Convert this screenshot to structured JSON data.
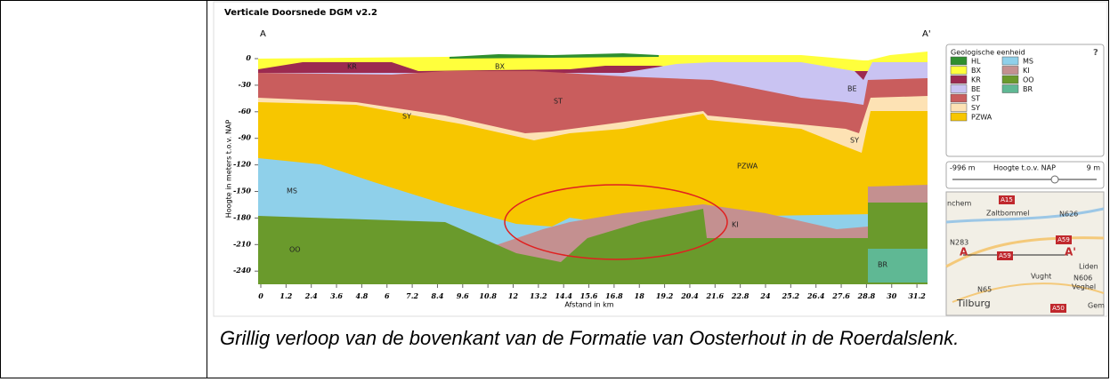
{
  "figure": {
    "title": "Verticale Doorsnede DGM v2.2",
    "start_label": "A",
    "end_label": "A'",
    "y_axis_label": "Hoogte in meters t.o.v. NAP",
    "x_axis_label": "Afstand in km",
    "y_ticks": [
      0,
      -30,
      -60,
      -90,
      -120,
      -150,
      -180,
      -210,
      -240
    ],
    "x_ticks": [
      0,
      1.2,
      2.4,
      3.6,
      4.8,
      6,
      7.2,
      8.4,
      9.6,
      10.8,
      12,
      13.2,
      14.4,
      15.6,
      16.8,
      18,
      19.2,
      20.4,
      21.6,
      22.8,
      24,
      25.2,
      26.4,
      27.6,
      28.8,
      30,
      31.2
    ],
    "unit_labels": [
      "KR",
      "BX",
      "ST",
      "SY",
      "BE",
      "SY",
      "PZWA",
      "MS",
      "KI",
      "OO",
      "BR"
    ],
    "legend": {
      "title": "Geologische eenheid",
      "help": "?",
      "items": [
        {
          "code": "HL",
          "color": "#2f8f2f"
        },
        {
          "code": "BX",
          "color": "#ffff3c"
        },
        {
          "code": "KR",
          "color": "#9c2a50"
        },
        {
          "code": "BE",
          "color": "#c9c3f2"
        },
        {
          "code": "ST",
          "color": "#c95d5d"
        },
        {
          "code": "SY",
          "color": "#fde2b4"
        },
        {
          "code": "PZWA",
          "color": "#f7c600"
        },
        {
          "code": "MS",
          "color": "#8fd0ea"
        },
        {
          "code": "KI",
          "color": "#c49090"
        },
        {
          "code": "OO",
          "color": "#6a9a2c"
        },
        {
          "code": "BR",
          "color": "#5fb894"
        }
      ]
    },
    "slider": {
      "min": "-996 m",
      "label": "Hoogte t.o.v. NAP",
      "max": "9 m"
    },
    "map": {
      "labels": [
        "nchem",
        "A15",
        "Zaltbommel",
        "N626",
        "N283",
        "A59",
        "A",
        "A59",
        "A'",
        "Liden",
        "Vught",
        "N606",
        "Veghel",
        "N65",
        "Tilburg",
        "A50",
        "Gem"
      ]
    }
  },
  "caption": "Grillig verloop van de bovenkant van de Formatie van Oosterhout in de Roerdalslenk."
}
